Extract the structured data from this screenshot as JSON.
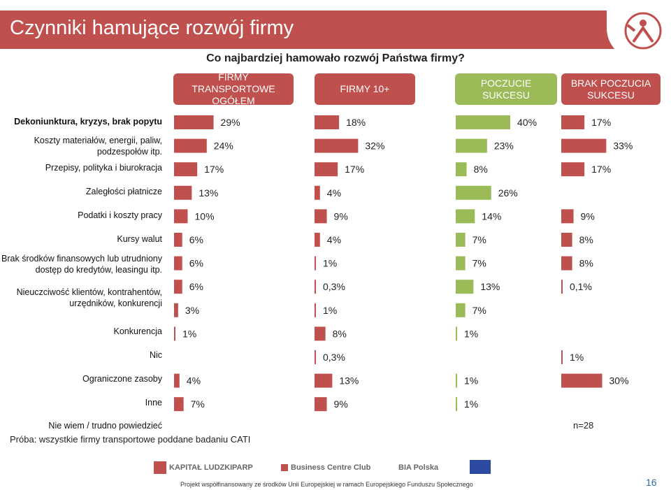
{
  "title": "Czynniki hamujące rozwój firmy",
  "question": "Co najbardziej hamowało rozwój Państwa firmy?",
  "base_note": "Próba: wszystkie firmy transportowe poddane badaniu CATI",
  "n_note": "n=28",
  "page_number": "16",
  "colors": {
    "red": "#c0504d",
    "green": "#9bbb59",
    "title_bg": "#c0504d"
  },
  "footer": {
    "logos": [
      "KAPITAŁ LUDZKI",
      "PARP",
      "Business Centre Club",
      "BIA Polska"
    ],
    "funding_note": "Projekt współfinansowany ze środków Unii Europejskiej w ramach Europejskiego Funduszu Społecznego"
  },
  "chart_data": {
    "type": "bar",
    "orientation": "horizontal",
    "unit": "%",
    "categories": [
      "Dekoniunktura, kryzys, brak popytu",
      "Koszty materiałów, energii, paliw, podzespołów itp.",
      "Przepisy, polityka i biurokracja",
      "Zaległości płatnicze",
      "Podatki i koszty pracy",
      "Kursy walut",
      "Brak środków finansowych lub utrudniony dostęp do kredytów, leasingu itp.",
      "Nieuczciwość klientów, kontrahentów, urzędników, konkurencji",
      "Konkurencja",
      "Nic",
      "Ograniczone zasoby",
      "Inne",
      "Nie wiem / trudno powiedzieć"
    ],
    "series": [
      {
        "name": "FIRMY TRANSPORTOWE OGÓŁEM",
        "color": "#c0504d",
        "values": [
          29,
          24,
          17,
          13,
          10,
          6,
          6,
          6,
          3,
          1,
          null,
          4,
          7
        ],
        "labels": [
          "29%",
          "24%",
          "17%",
          "13%",
          "10%",
          "6%",
          "6%",
          "6%",
          "3%",
          "1%",
          "",
          "4%",
          "7%"
        ]
      },
      {
        "name": "FIRMY 10+",
        "color": "#c0504d",
        "values": [
          18,
          32,
          17,
          4,
          9,
          4,
          1,
          0.3,
          1,
          8,
          0.3,
          13,
          9
        ],
        "labels": [
          "18%",
          "32%",
          "17%",
          "4%",
          "9%",
          "4%",
          "1%",
          "0,3%",
          "1%",
          "8%",
          "0,3%",
          "13%",
          "9%"
        ]
      },
      {
        "name": "POCZUCIE SUKCESU",
        "color": "#9bbb59",
        "values": [
          40,
          23,
          8,
          26,
          14,
          7,
          7,
          13,
          7,
          1,
          null,
          1,
          1
        ],
        "labels": [
          "40%",
          "23%",
          "8%",
          "26%",
          "14%",
          "7%",
          "7%",
          "13%",
          "7%",
          "1%",
          "",
          "1%",
          "1%"
        ]
      },
      {
        "name": "BRAK POCZUCIA SUKCESU",
        "color": "#c0504d",
        "values": [
          17,
          33,
          17,
          null,
          9,
          8,
          8,
          0.1,
          null,
          null,
          1,
          30,
          null
        ],
        "labels": [
          "17%",
          "33%",
          "17%",
          "",
          "9%",
          "8%",
          "8%",
          "0,1%",
          "",
          "",
          "1%",
          "30%",
          ""
        ]
      }
    ]
  }
}
